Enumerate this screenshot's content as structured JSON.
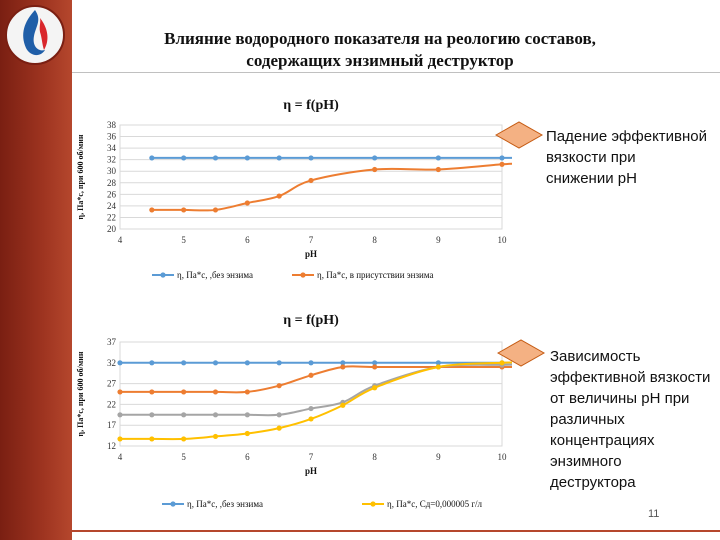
{
  "slide": {
    "title_line1": "Влияние водородного показателя на реологию составов,",
    "title_line2": "содержащих энзимный деструктор",
    "page_number": "11",
    "accent_color": "#9e3420"
  },
  "callouts": {
    "top": [
      "Падение эффективной",
      "вязкости при",
      "снижении pH"
    ],
    "bottom": [
      "Зависимость",
      "эффективной вязкости",
      "от величины pH при",
      "различных",
      "концентрациях",
      "энзимного",
      "деструктора"
    ]
  },
  "chart_data": [
    {
      "type": "line",
      "title": "η = f(pH)",
      "xlabel": "pH",
      "ylabel": "η, Па*с, при 600 об/мин",
      "xlim": [
        4,
        10
      ],
      "ylim": [
        20,
        38
      ],
      "x_ticks": [
        "4",
        "5",
        "6",
        "7",
        "8",
        "9",
        "10"
      ],
      "y_ticks": [
        "20",
        "22",
        "24",
        "26",
        "28",
        "30",
        "32",
        "34",
        "36",
        "38"
      ],
      "grid": "horizontal",
      "legend_position": "bottom",
      "series": [
        {
          "name": "η, Па*с, ,без энзима",
          "color": "#5b9bd5",
          "x": [
            4.5,
            5.0,
            5.5,
            6.0,
            6.5,
            7.0,
            8.0,
            9.0,
            10.0,
            10.2
          ],
          "y": [
            32.3,
            32.3,
            32.3,
            32.3,
            32.3,
            32.3,
            32.3,
            32.3,
            32.3,
            32.3
          ]
        },
        {
          "name": "η, Па*с, в присутствии энзима",
          "color": "#ed7d31",
          "x": [
            4.5,
            5.0,
            5.5,
            6.0,
            6.5,
            7.0,
            8.0,
            9.0,
            10.0,
            10.2
          ],
          "y": [
            23.3,
            23.3,
            23.3,
            24.5,
            25.7,
            28.4,
            30.3,
            30.3,
            31.2,
            31.3
          ]
        }
      ]
    },
    {
      "type": "line",
      "title": "η = f(pH)",
      "xlabel": "pH",
      "ylabel": "η, Па*с, при 600 об/мин",
      "xlim": [
        4,
        10
      ],
      "ylim": [
        12,
        37
      ],
      "x_ticks": [
        "4",
        "5",
        "6",
        "7",
        "8",
        "9",
        "10"
      ],
      "y_ticks": [
        "12",
        "17",
        "22",
        "27",
        "32",
        "37"
      ],
      "grid": "horizontal",
      "legend_position": "bottom",
      "series": [
        {
          "name": "η, Па*с, ,без энзима",
          "color": "#5b9bd5",
          "x": [
            4.0,
            4.5,
            5.0,
            5.5,
            6.0,
            6.5,
            7.0,
            7.5,
            8.0,
            9.0,
            10.0,
            10.2
          ],
          "y": [
            32,
            32,
            32,
            32,
            32,
            32,
            32,
            32,
            32,
            32,
            32,
            32
          ]
        },
        {
          "name": "",
          "color": "#ed7d31",
          "x": [
            4.0,
            4.5,
            5.0,
            5.5,
            6.0,
            6.5,
            7.0,
            7.5,
            8.0,
            9.0,
            10.0,
            10.2
          ],
          "y": [
            25,
            25,
            25,
            25,
            25,
            26.5,
            29,
            31,
            31,
            31,
            31,
            31
          ]
        },
        {
          "name": "",
          "color": "#a5a5a5",
          "x": [
            4.0,
            4.5,
            5.0,
            5.5,
            6.0,
            6.5,
            7.0,
            7.5,
            8.0,
            9.0,
            10.0,
            10.2
          ],
          "y": [
            19.5,
            19.5,
            19.5,
            19.5,
            19.5,
            19.5,
            21,
            22.5,
            26.5,
            31,
            31.5,
            31.5
          ]
        },
        {
          "name": "η, Па*с, Сд=0,000005 г/л",
          "color": "#ffc000",
          "x": [
            4.0,
            4.5,
            5.0,
            5.5,
            6.0,
            6.5,
            7.0,
            7.5,
            8.0,
            9.0,
            10.0,
            10.2
          ],
          "y": [
            13.7,
            13.7,
            13.7,
            14.3,
            15,
            16.3,
            18.5,
            21.8,
            26,
            31,
            32,
            32
          ]
        }
      ]
    }
  ]
}
